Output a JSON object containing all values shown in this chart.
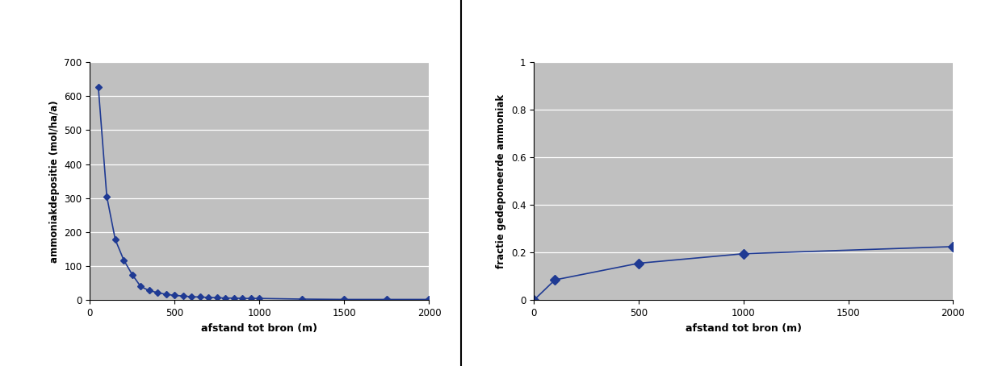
{
  "chart1": {
    "x": [
      50,
      100,
      150,
      200,
      250,
      300,
      350,
      400,
      450,
      500,
      550,
      600,
      650,
      700,
      750,
      800,
      850,
      900,
      950,
      1000,
      1250,
      1500,
      1750,
      2000
    ],
    "y": [
      628,
      305,
      178,
      118,
      75,
      40,
      28,
      22,
      17,
      14,
      12,
      10,
      9,
      8,
      7,
      6,
      6,
      5,
      5,
      5,
      3,
      2,
      2,
      2
    ],
    "xlabel": "afstand tot bron (m)",
    "ylabel": "ammoniakdepositie (mol/ha/a)",
    "xlim": [
      0,
      2000
    ],
    "ylim": [
      0,
      700
    ],
    "xticks": [
      0,
      500,
      1000,
      1500,
      2000
    ],
    "yticks": [
      0,
      100,
      200,
      300,
      400,
      500,
      600,
      700
    ],
    "line_color": "#1f3a93",
    "marker": "D",
    "marker_color": "#1f3a93",
    "marker_size": 4
  },
  "chart2": {
    "x": [
      0,
      100,
      500,
      1000,
      2000
    ],
    "y": [
      0.0,
      0.085,
      0.155,
      0.195,
      0.225
    ],
    "xlabel": "afstand tot bron (m)",
    "ylabel": "fractie gedeponeerde ammoniak",
    "xlim": [
      0,
      2000
    ],
    "ylim": [
      0,
      1
    ],
    "xticks": [
      0,
      500,
      1000,
      1500,
      2000
    ],
    "yticks": [
      0.0,
      0.2,
      0.4,
      0.6,
      0.8,
      1.0
    ],
    "line_color": "#1f3a93",
    "marker": "D",
    "marker_color": "#1f3a93",
    "marker_size": 6
  },
  "fig_width": 12.36,
  "fig_height": 4.54,
  "panel_bg": "#c0c0c0",
  "outer_bg": "#ffffff",
  "divider_x": 0.462
}
